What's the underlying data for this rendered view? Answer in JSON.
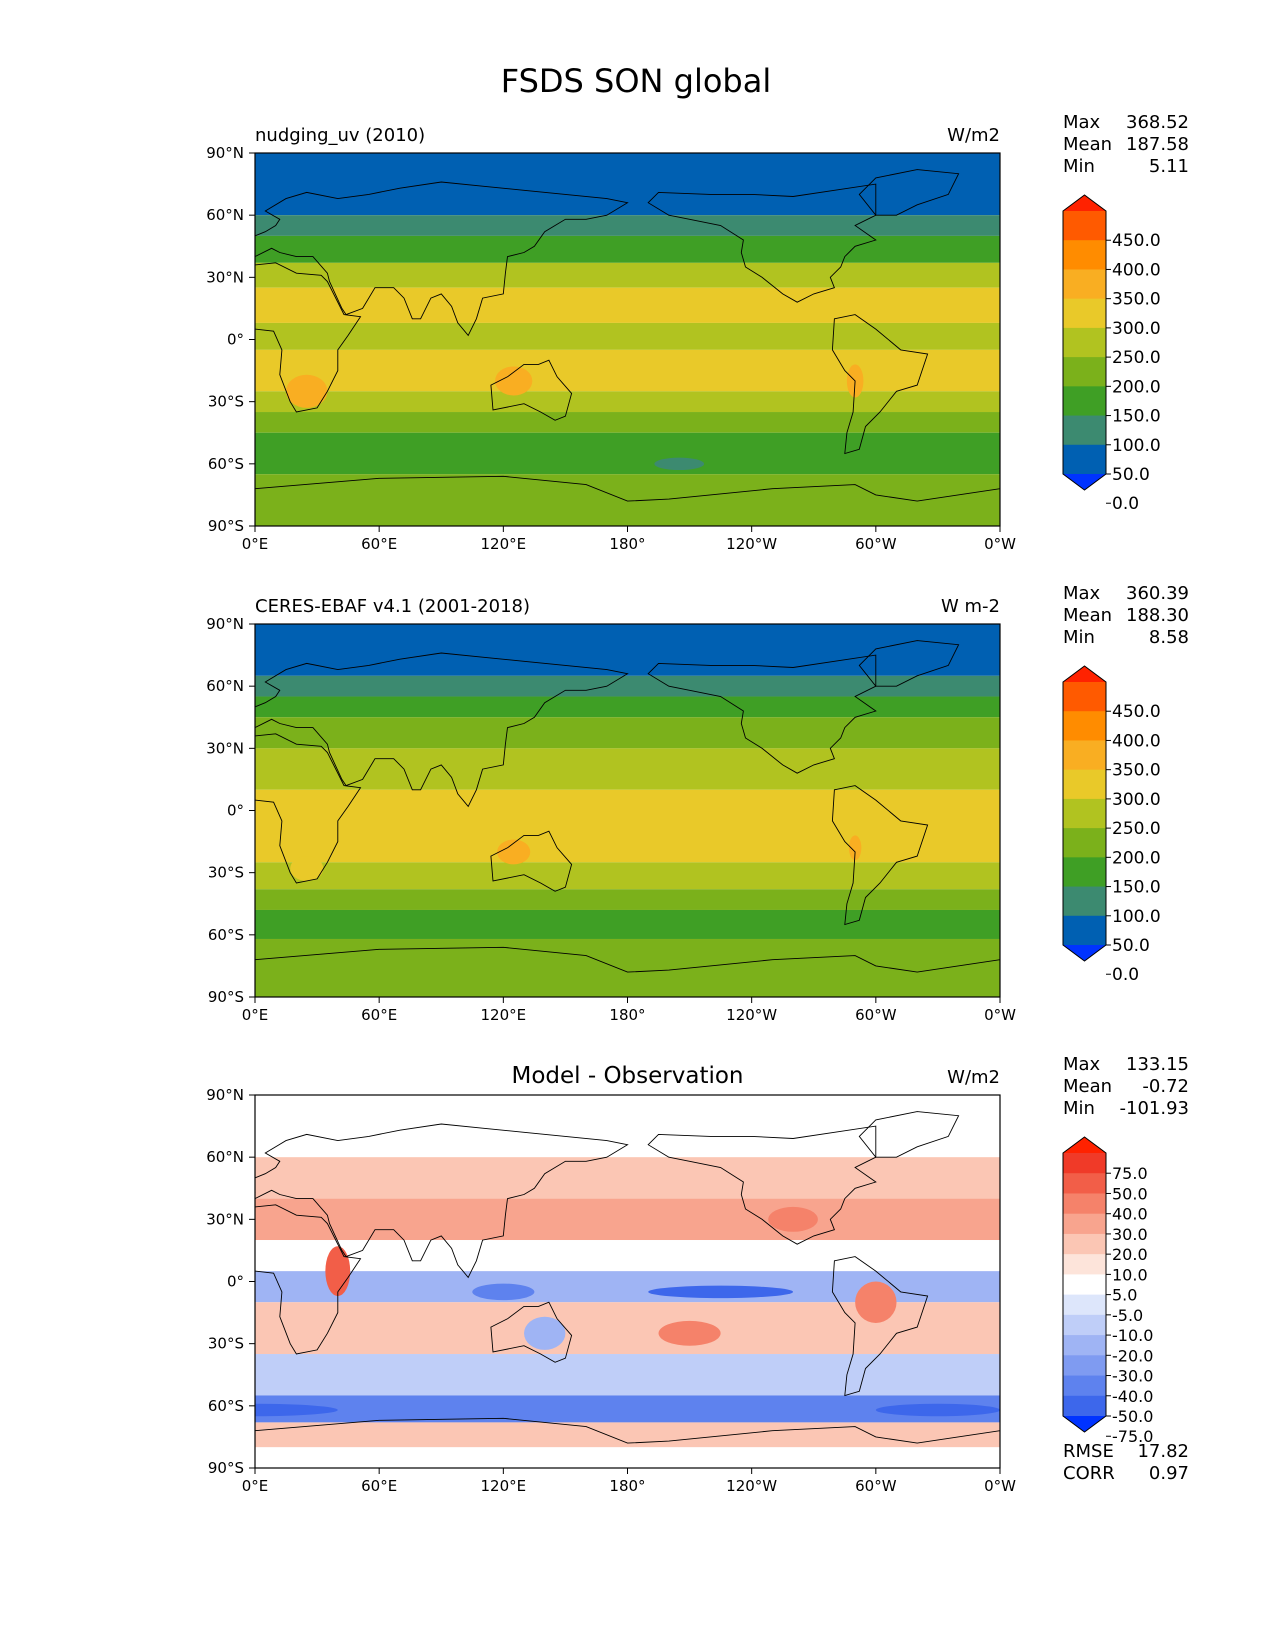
{
  "figure": {
    "title": "FSDS SON global"
  },
  "lat_ticks": [
    "90°N",
    "60°N",
    "30°N",
    "0°",
    "30°S",
    "60°S",
    "90°S"
  ],
  "lon_ticks": [
    "0°E",
    "60°E",
    "120°E",
    "180°",
    "120°W",
    "60°W",
    "0°W"
  ],
  "chart_data": [
    {
      "type": "heatmap",
      "title": "nudging_uv (2010)",
      "units": "W/m2",
      "xlim": [
        0,
        360
      ],
      "ylim": [
        -90,
        90
      ],
      "stats": [
        {
          "label": "Max",
          "value": "368.52"
        },
        {
          "label": "Mean",
          "value": "187.58"
        },
        {
          "label": "Min",
          "value": "5.11"
        }
      ],
      "colorbar": {
        "labels": [
          "450.0",
          "400.0",
          "350.0",
          "300.0",
          "250.0",
          "200.0",
          "150.0",
          "100.0",
          "50.0",
          "0.0"
        ],
        "colors": [
          "#ff2200",
          "#ff5a00",
          "#ff8c00",
          "#f9ae22",
          "#e9c929",
          "#b1c320",
          "#7bb11b",
          "#3f9f25",
          "#3c8a70",
          "#0060b2",
          "#0033ff"
        ]
      },
      "bands": [
        {
          "lat": [
            60,
            90
          ],
          "color": "#0060b2"
        },
        {
          "lat": [
            50,
            60
          ],
          "color": "#3c8a70"
        },
        {
          "lat": [
            37,
            50
          ],
          "color": "#3f9f25"
        },
        {
          "lat": [
            25,
            37
          ],
          "color": "#b1c320"
        },
        {
          "lat": [
            8,
            25
          ],
          "color": "#e9c929"
        },
        {
          "lat": [
            -5,
            8
          ],
          "color": "#b1c320"
        },
        {
          "lat": [
            -25,
            -5
          ],
          "color": "#e9c929"
        },
        {
          "lat": [
            -35,
            -25
          ],
          "color": "#b1c320"
        },
        {
          "lat": [
            -45,
            -35
          ],
          "color": "#7bb11b"
        },
        {
          "lat": [
            -65,
            -45
          ],
          "color": "#3f9f25"
        },
        {
          "lat": [
            -90,
            -65
          ],
          "color": "#7bb11b"
        }
      ],
      "patches": [
        {
          "lon": 25,
          "lat": -25,
          "rx": 10,
          "ry": 8,
          "color": "#f9ae22"
        },
        {
          "lon": 125,
          "lat": -20,
          "rx": 9,
          "ry": 7,
          "color": "#f9ae22"
        },
        {
          "lon": 290,
          "lat": -20,
          "rx": 4,
          "ry": 8,
          "color": "#f9ae22"
        },
        {
          "lon": 205,
          "lat": -60,
          "rx": 12,
          "ry": 3,
          "color": "#3c8a70"
        }
      ]
    },
    {
      "type": "heatmap",
      "title": "CERES-EBAF v4.1 (2001-2018)",
      "units": "W m-2",
      "xlim": [
        0,
        360
      ],
      "ylim": [
        -90,
        90
      ],
      "stats": [
        {
          "label": "Max",
          "value": "360.39"
        },
        {
          "label": "Mean",
          "value": "188.30"
        },
        {
          "label": "Min",
          "value": "8.58"
        }
      ],
      "colorbar": {
        "labels": [
          "450.0",
          "400.0",
          "350.0",
          "300.0",
          "250.0",
          "200.0",
          "150.0",
          "100.0",
          "50.0",
          "0.0"
        ],
        "colors": [
          "#ff2200",
          "#ff5a00",
          "#ff8c00",
          "#f9ae22",
          "#e9c929",
          "#b1c320",
          "#7bb11b",
          "#3f9f25",
          "#3c8a70",
          "#0060b2",
          "#0033ff"
        ]
      },
      "bands": [
        {
          "lat": [
            65,
            90
          ],
          "color": "#0060b2"
        },
        {
          "lat": [
            55,
            65
          ],
          "color": "#3c8a70"
        },
        {
          "lat": [
            45,
            55
          ],
          "color": "#3f9f25"
        },
        {
          "lat": [
            30,
            45
          ],
          "color": "#7bb11b"
        },
        {
          "lat": [
            10,
            30
          ],
          "color": "#b1c320"
        },
        {
          "lat": [
            -25,
            10
          ],
          "color": "#e9c929"
        },
        {
          "lat": [
            -38,
            -25
          ],
          "color": "#b1c320"
        },
        {
          "lat": [
            -48,
            -38
          ],
          "color": "#7bb11b"
        },
        {
          "lat": [
            -62,
            -48
          ],
          "color": "#3f9f25"
        },
        {
          "lat": [
            -90,
            -62
          ],
          "color": "#7bb11b"
        }
      ],
      "patches": [
        {
          "lon": 125,
          "lat": -20,
          "rx": 8,
          "ry": 6,
          "color": "#f9ae22"
        },
        {
          "lon": 290,
          "lat": -18,
          "rx": 3,
          "ry": 6,
          "color": "#f9ae22"
        },
        {
          "lon": 25,
          "lat": -28,
          "rx": 8,
          "ry": 6,
          "color": "#e9c929"
        }
      ]
    },
    {
      "type": "heatmap",
      "title": "Model - Observation",
      "units": "W/m2",
      "xlim": [
        0,
        360
      ],
      "ylim": [
        -90,
        90
      ],
      "stats": [
        {
          "label": "Max",
          "value": "133.15"
        },
        {
          "label": "Mean",
          "value": "-0.72"
        },
        {
          "label": "Min",
          "value": "-101.93"
        }
      ],
      "extra_stats": [
        {
          "label": "RMSE",
          "value": "17.82"
        },
        {
          "label": "CORR",
          "value": "0.97"
        }
      ],
      "colorbar": {
        "labels": [
          "75.0",
          "50.0",
          "40.0",
          "30.0",
          "20.0",
          "10.0",
          "5.0",
          "-5.0",
          "-10.0",
          "-20.0",
          "-30.0",
          "-40.0",
          "-50.0",
          "-75.0"
        ],
        "colors": [
          "#ff2200",
          "#f03a28",
          "#f25e48",
          "#f5826a",
          "#f8a48e",
          "#fbc6b4",
          "#fde4da",
          "#ffffff",
          "#dde6fb",
          "#bfcef8",
          "#9fb4f4",
          "#7f9bf1",
          "#5e82ee",
          "#3d67eb",
          "#0033ff"
        ]
      },
      "bands": [
        {
          "lat": [
            85,
            90
          ],
          "color": "#ffffff"
        },
        {
          "lat": [
            60,
            85
          ],
          "color": "#ffffff"
        },
        {
          "lat": [
            40,
            60
          ],
          "color": "#fbc6b4"
        },
        {
          "lat": [
            20,
            40
          ],
          "color": "#f8a48e"
        },
        {
          "lat": [
            5,
            20
          ],
          "color": "#ffffff"
        },
        {
          "lat": [
            -10,
            5
          ],
          "color": "#9fb4f4"
        },
        {
          "lat": [
            -35,
            -10
          ],
          "color": "#fbc6b4"
        },
        {
          "lat": [
            -55,
            -35
          ],
          "color": "#bfcef8"
        },
        {
          "lat": [
            -68,
            -55
          ],
          "color": "#5e82ee"
        },
        {
          "lat": [
            -80,
            -68
          ],
          "color": "#fbc6b4"
        },
        {
          "lat": [
            -90,
            -80
          ],
          "color": "#ffffff"
        }
      ],
      "patches": [
        {
          "lon": 40,
          "lat": 5,
          "rx": 6,
          "ry": 12,
          "color": "#f25e48"
        },
        {
          "lon": 225,
          "lat": -5,
          "rx": 35,
          "ry": 3,
          "color": "#3d67eb"
        },
        {
          "lon": 120,
          "lat": -5,
          "rx": 15,
          "ry": 4,
          "color": "#5e82ee"
        },
        {
          "lon": 300,
          "lat": -10,
          "rx": 10,
          "ry": 10,
          "color": "#f5826a"
        },
        {
          "lon": 260,
          "lat": 30,
          "rx": 12,
          "ry": 6,
          "color": "#f5826a"
        },
        {
          "lon": 210,
          "lat": -25,
          "rx": 15,
          "ry": 6,
          "color": "#f5826a"
        },
        {
          "lon": 0,
          "lat": -62,
          "rx": 40,
          "ry": 3,
          "color": "#3d67eb"
        },
        {
          "lon": 330,
          "lat": -62,
          "rx": 30,
          "ry": 3,
          "color": "#3d67eb"
        },
        {
          "lon": 140,
          "lat": -25,
          "rx": 10,
          "ry": 8,
          "color": "#9fb4f4"
        }
      ]
    }
  ],
  "continents": [
    [
      [
        -10,
        36
      ],
      [
        0,
        43
      ],
      [
        -5,
        48
      ],
      [
        5,
        52
      ],
      [
        10,
        55
      ],
      [
        12,
        58
      ],
      [
        5,
        62
      ],
      [
        15,
        68
      ],
      [
        25,
        71
      ],
      [
        40,
        68
      ],
      [
        55,
        70
      ],
      [
        70,
        73
      ],
      [
        90,
        76
      ],
      [
        110,
        74
      ],
      [
        130,
        72
      ],
      [
        150,
        70
      ],
      [
        170,
        68
      ],
      [
        180,
        66
      ],
      [
        170,
        60
      ],
      [
        160,
        58
      ],
      [
        150,
        58
      ],
      [
        140,
        52
      ],
      [
        135,
        45
      ],
      [
        130,
        42
      ],
      [
        122,
        40
      ],
      [
        121,
        32
      ],
      [
        120,
        22
      ],
      [
        110,
        20
      ],
      [
        107,
        10
      ],
      [
        103,
        2
      ],
      [
        98,
        8
      ],
      [
        95,
        16
      ],
      [
        90,
        22
      ],
      [
        85,
        20
      ],
      [
        80,
        10
      ],
      [
        76,
        10
      ],
      [
        72,
        20
      ],
      [
        67,
        25
      ],
      [
        58,
        25
      ],
      [
        52,
        15
      ],
      [
        44,
        12
      ],
      [
        42,
        15
      ],
      [
        36,
        28
      ],
      [
        35,
        32
      ],
      [
        28,
        40
      ],
      [
        20,
        40
      ],
      [
        12,
        42
      ],
      [
        8,
        44
      ],
      [
        0,
        40
      ],
      [
        -10,
        36
      ]
    ],
    [
      [
        -17,
        20
      ],
      [
        -10,
        35
      ],
      [
        0,
        36
      ],
      [
        10,
        37
      ],
      [
        20,
        32
      ],
      [
        32,
        31
      ],
      [
        35,
        28
      ],
      [
        43,
        12
      ],
      [
        51,
        11
      ],
      [
        45,
        2
      ],
      [
        40,
        -5
      ],
      [
        40,
        -15
      ],
      [
        35,
        -25
      ],
      [
        30,
        -33
      ],
      [
        20,
        -35
      ],
      [
        17,
        -30
      ],
      [
        12,
        -17
      ],
      [
        13,
        -5
      ],
      [
        9,
        4
      ],
      [
        0,
        5
      ],
      [
        -8,
        4
      ],
      [
        -17,
        14
      ],
      [
        -17,
        20
      ]
    ],
    [
      [
        114,
        -22
      ],
      [
        122,
        -18
      ],
      [
        130,
        -12
      ],
      [
        137,
        -12
      ],
      [
        142,
        -10
      ],
      [
        146,
        -18
      ],
      [
        153,
        -26
      ],
      [
        150,
        -37
      ],
      [
        145,
        -39
      ],
      [
        138,
        -35
      ],
      [
        130,
        -31
      ],
      [
        115,
        -34
      ],
      [
        114,
        -22
      ]
    ],
    [
      [
        200,
        60
      ],
      [
        190,
        66
      ],
      [
        195,
        71
      ],
      [
        220,
        70
      ],
      [
        240,
        70
      ],
      [
        260,
        69
      ],
      [
        280,
        72
      ],
      [
        300,
        75
      ],
      [
        300,
        60
      ],
      [
        290,
        55
      ],
      [
        300,
        48
      ],
      [
        290,
        45
      ],
      [
        285,
        40
      ],
      [
        283,
        35
      ],
      [
        278,
        30
      ],
      [
        280,
        25
      ],
      [
        270,
        22
      ],
      [
        262,
        18
      ],
      [
        255,
        22
      ],
      [
        245,
        30
      ],
      [
        237,
        35
      ],
      [
        235,
        42
      ],
      [
        236,
        48
      ],
      [
        225,
        55
      ],
      [
        210,
        58
      ],
      [
        200,
        60
      ]
    ],
    [
      [
        280,
        10
      ],
      [
        290,
        12
      ],
      [
        300,
        5
      ],
      [
        312,
        -5
      ],
      [
        325,
        -7
      ],
      [
        320,
        -22
      ],
      [
        310,
        -25
      ],
      [
        302,
        -35
      ],
      [
        295,
        -42
      ],
      [
        292,
        -53
      ],
      [
        285,
        -55
      ],
      [
        286,
        -45
      ],
      [
        289,
        -35
      ],
      [
        290,
        -20
      ],
      [
        285,
        -15
      ],
      [
        279,
        -5
      ],
      [
        280,
        10
      ]
    ],
    [
      [
        300,
        60
      ],
      [
        310,
        60
      ],
      [
        320,
        65
      ],
      [
        335,
        70
      ],
      [
        340,
        80
      ],
      [
        320,
        82
      ],
      [
        300,
        78
      ],
      [
        292,
        70
      ],
      [
        300,
        60
      ]
    ],
    [
      [
        0,
        -72
      ],
      [
        60,
        -67
      ],
      [
        120,
        -66
      ],
      [
        160,
        -70
      ],
      [
        180,
        -78
      ],
      [
        200,
        -77
      ],
      [
        250,
        -72
      ],
      [
        290,
        -70
      ],
      [
        300,
        -75
      ],
      [
        320,
        -78
      ],
      [
        360,
        -72
      ],
      [
        360,
        -90
      ],
      [
        0,
        -90
      ],
      [
        0,
        -72
      ]
    ]
  ]
}
